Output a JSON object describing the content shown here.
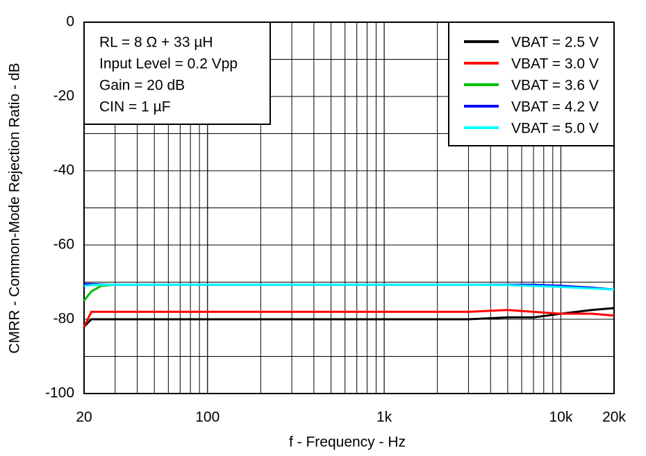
{
  "chart_data": {
    "type": "line",
    "xlabel": "f - Frequency - Hz",
    "ylabel": "CMRR - Common-Mode Rejection Ratio - dB",
    "annotations": [
      "RL = 8 Ω + 33 µH",
      "Input Level = 0.2 Vpp",
      "Gain = 20 dB",
      "CIN =  1 µF"
    ],
    "xscale": "log",
    "grid": true,
    "legend": "upper right",
    "x": [
      20,
      22,
      25,
      30,
      40,
      50,
      70,
      100,
      150,
      200,
      300,
      400,
      500,
      700,
      1000,
      1500,
      2000,
      3000,
      5000,
      7000,
      10000,
      15000,
      20000
    ],
    "series": [
      {
        "name": "VBAT = 2.5 V",
        "color": "#000000",
        "values": [
          -82,
          -80,
          -80,
          -80,
          -80,
          -80,
          -80,
          -80,
          -80,
          -80,
          -80,
          -80,
          -80,
          -80,
          -80,
          -80,
          -80,
          -80,
          -79.5,
          -79.5,
          -78.5,
          -77.5,
          -77
        ]
      },
      {
        "name": "VBAT = 3.0 V",
        "color": "#ff0000",
        "values": [
          -82,
          -78,
          -78,
          -78,
          -78,
          -78,
          -78,
          -78,
          -78,
          -78,
          -78,
          -78,
          -78,
          -78,
          -78,
          -78,
          -78,
          -78,
          -77.5,
          -78,
          -78.5,
          -78.5,
          -79
        ]
      },
      {
        "name": "VBAT = 3.6 V",
        "color": "#00c000",
        "values": [
          -75,
          -72.5,
          -71,
          -70.7,
          -70.7,
          -70.7,
          -70.7,
          -70.7,
          -70.7,
          -70.7,
          -70.7,
          -70.7,
          -70.7,
          -70.7,
          -70.7,
          -70.7,
          -70.7,
          -70.7,
          -70.7,
          -70.7,
          -71,
          -71.5,
          -72
        ]
      },
      {
        "name": "VBAT = 4.2 V",
        "color": "#0000ff",
        "values": [
          -70.5,
          -70.5,
          -70.6,
          -70.7,
          -70.7,
          -70.7,
          -70.7,
          -70.7,
          -70.7,
          -70.7,
          -70.7,
          -70.7,
          -70.7,
          -70.7,
          -70.7,
          -70.7,
          -70.7,
          -70.7,
          -70.7,
          -70.7,
          -71,
          -71.5,
          -72
        ]
      },
      {
        "name": "VBAT = 5.0 V",
        "color": "#00ffff",
        "values": [
          -71,
          -70.8,
          -70.7,
          -70.7,
          -70.7,
          -70.7,
          -70.7,
          -70.7,
          -70.7,
          -70.7,
          -70.7,
          -70.7,
          -70.7,
          -70.7,
          -70.7,
          -70.7,
          -70.7,
          -70.7,
          -70.8,
          -71,
          -71.3,
          -71.7,
          -72
        ]
      }
    ],
    "xlim": [
      20,
      20000
    ],
    "xticks": [
      20,
      100,
      {
        "value": 1000,
        "label": "1k"
      },
      {
        "value": 10000,
        "label": "10k"
      },
      {
        "value": 20000,
        "label": "20k"
      }
    ],
    "ylim": [
      -100,
      0
    ],
    "yticks": [
      0,
      -20,
      -40,
      -60,
      -80,
      -100
    ]
  }
}
